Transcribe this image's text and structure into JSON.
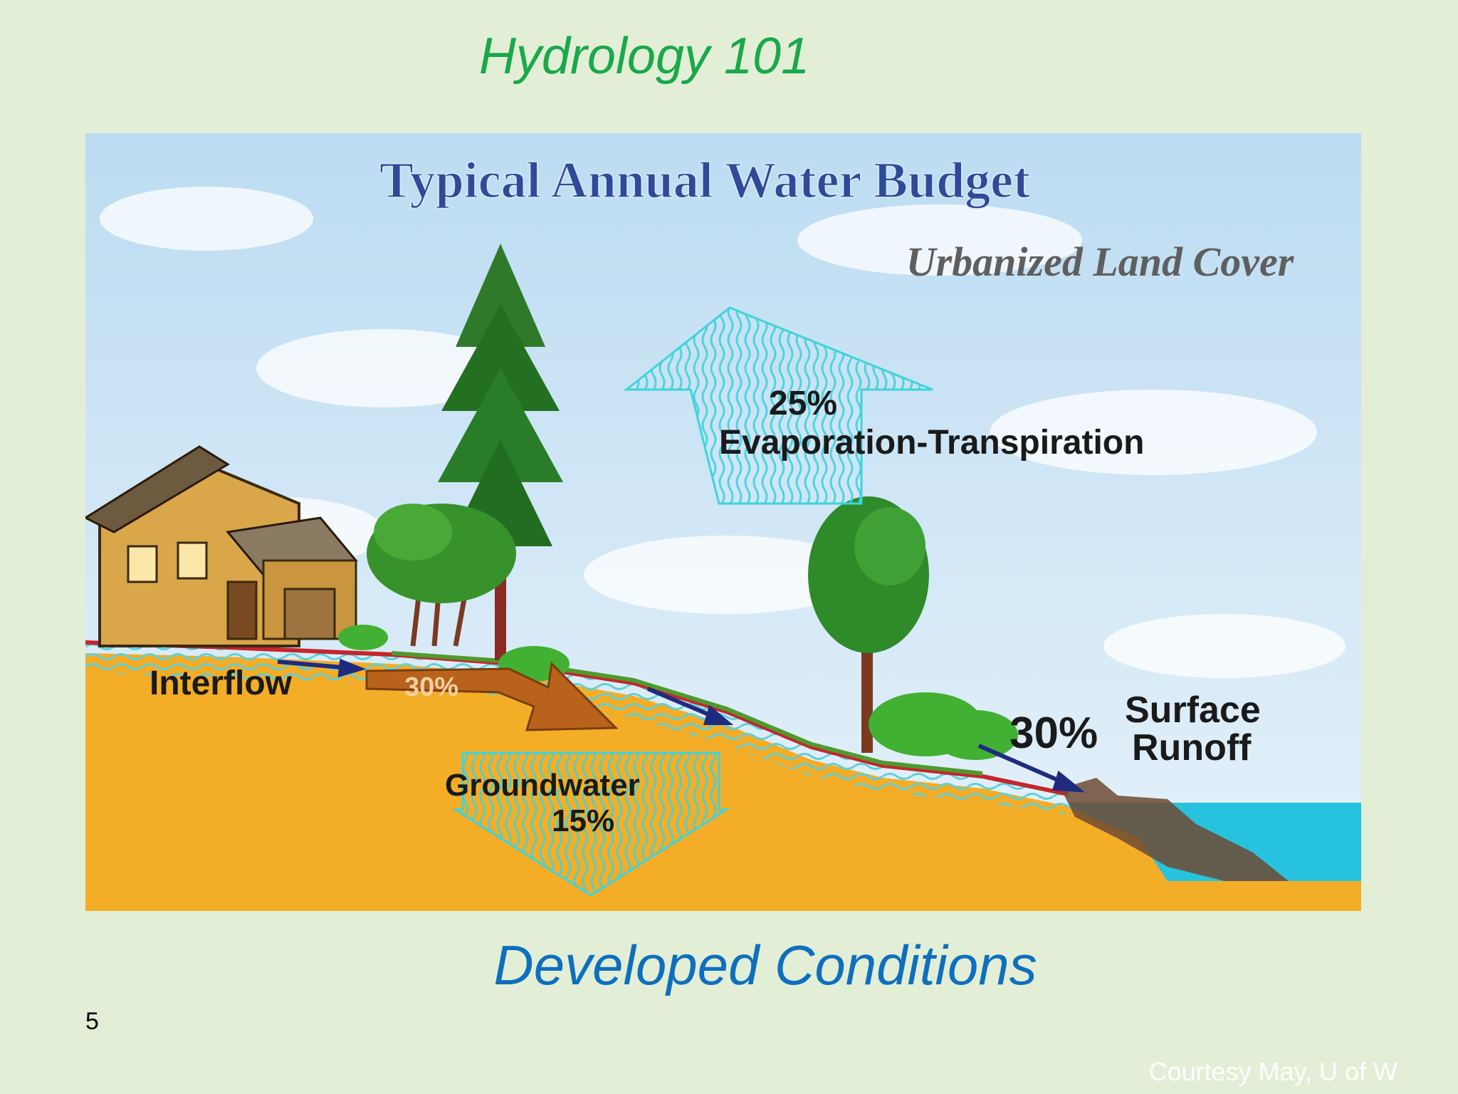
{
  "slide": {
    "title": "Hydrology 101",
    "caption": "Developed Conditions",
    "page_number": "5",
    "credit": "Courtesy May, U of W"
  },
  "diagram": {
    "heading": "Typical Annual Water Budget",
    "subheading": "Urbanized Land Cover",
    "evapotranspiration": {
      "percent": "25%",
      "label": "Evaporation-Transpiration"
    },
    "interflow": {
      "label": "Interflow",
      "percent": "30%"
    },
    "groundwater": {
      "label": "Groundwater",
      "percent": "15%"
    },
    "surface_runoff": {
      "percent": "30%",
      "label_line1": "Surface",
      "label_line2": "Runoff"
    }
  },
  "colors": {
    "title": "#1aa84a",
    "caption": "#0f6fbe",
    "sky": "#cfe6f5",
    "soil": "#f5ad27",
    "water": "#3fc6dc",
    "interflow_arrow": "#b8621b",
    "heading_text": "#2e4a98"
  }
}
